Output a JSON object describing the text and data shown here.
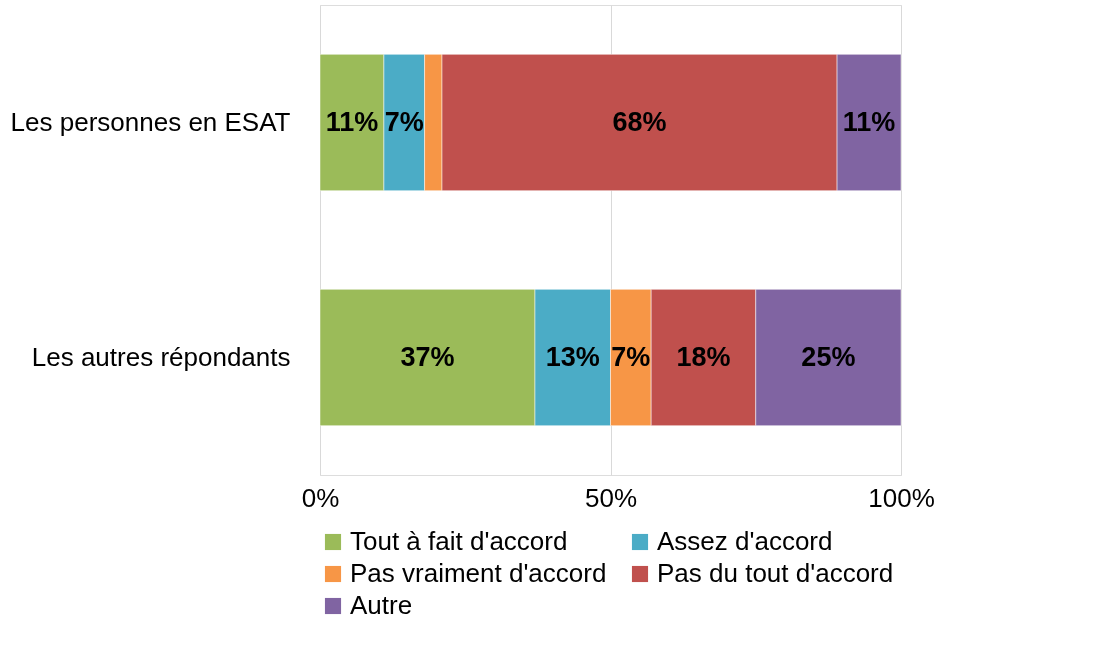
{
  "chart_data": {
    "type": "bar",
    "orientation": "horizontal",
    "stacked": true,
    "categories": [
      "Les personnes en ESAT",
      "Les autres répondants"
    ],
    "series": [
      {
        "name": "Tout à fait d'accord",
        "color": "#9bbb59",
        "values": [
          11,
          37
        ],
        "value_labels": [
          "11%",
          "37%"
        ]
      },
      {
        "name": "Assez d'accord",
        "color": "#4bacc6",
        "values": [
          7,
          13
        ],
        "value_labels": [
          "7%",
          "13%"
        ]
      },
      {
        "name": "Pas vraiment d'accord",
        "color": "#f79646",
        "values": [
          3,
          7
        ],
        "value_labels": [
          null,
          "7%"
        ]
      },
      {
        "name": "Pas du tout d'accord",
        "color": "#c0504d",
        "values": [
          68,
          18
        ],
        "value_labels": [
          "68%",
          "18%"
        ]
      },
      {
        "name": "Autre",
        "color": "#8064a2",
        "values": [
          11,
          25
        ],
        "value_labels": [
          "11%",
          "25%"
        ]
      }
    ],
    "xlim": [
      0,
      100
    ],
    "xticks": [
      {
        "value": 0,
        "label": "0%"
      },
      {
        "value": 50,
        "label": "50%"
      },
      {
        "value": 100,
        "label": "100%"
      }
    ],
    "grid": "x",
    "legend": "bottom"
  }
}
